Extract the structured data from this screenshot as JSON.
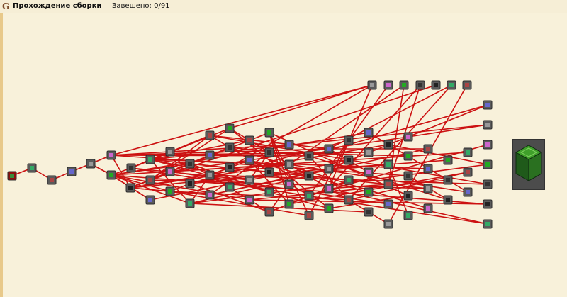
{
  "header": {
    "title": "Прохождение сборки",
    "status": "Завешено: 0/91"
  },
  "colors": {
    "line": "#cc1111",
    "node_bg": "#5a5a5a",
    "node_start": "#8a1010",
    "background": "#f8f1da"
  },
  "reward": {
    "icon": "green-machine-block-icon"
  }
}
